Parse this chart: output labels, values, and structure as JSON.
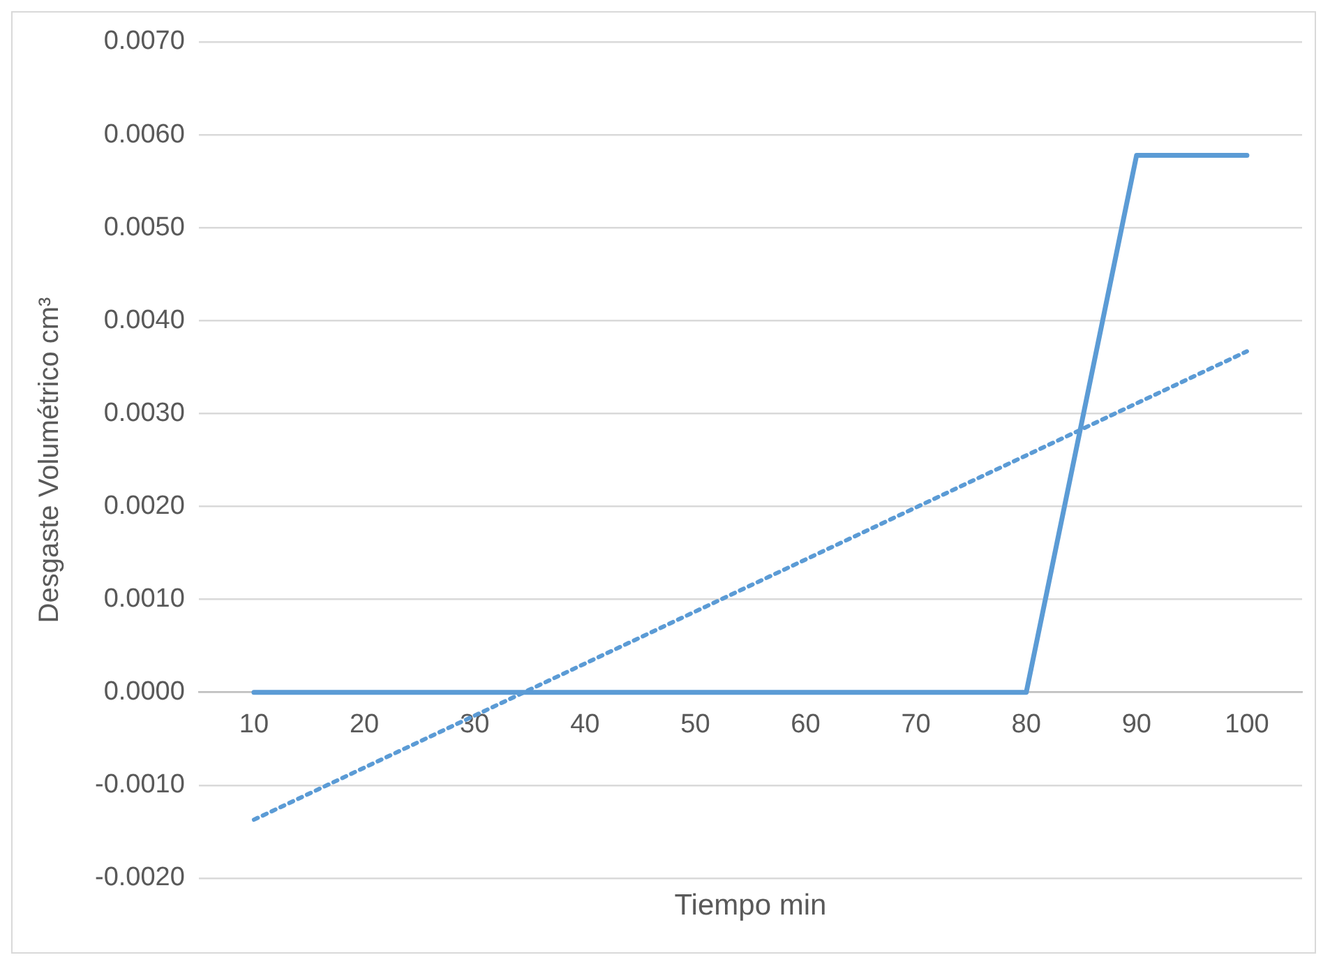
{
  "chart_data": {
    "type": "line",
    "xlabel": "Tiempo min",
    "ylabel": "Desgaste Volumétrico cm³",
    "categories": [
      "10",
      "20",
      "30",
      "40",
      "50",
      "60",
      "70",
      "80",
      "90",
      "100"
    ],
    "series": [
      {
        "color": "#5b9bd5",
        "values": [
          0,
          0,
          0,
          0,
          0,
          0,
          0,
          0,
          0.00578,
          0.00578
        ],
        "line_style": "solid"
      },
      {
        "type": "line",
        "color": "#5b9bd5",
        "x": [
          "10",
          "100"
        ],
        "values": [
          -0.00137,
          0.00367
        ],
        "line_style": "dotted"
      }
    ],
    "ylim": [
      -0.002,
      0.007
    ],
    "yticks": [
      {
        "value": -0.002,
        "label": "-0.0020"
      },
      {
        "value": -0.001,
        "label": "-0.0010"
      },
      {
        "value": 0,
        "label": "0.0000"
      },
      {
        "value": 0.001,
        "label": "0.0010"
      },
      {
        "value": 0.002,
        "label": "0.0020"
      },
      {
        "value": 0.003,
        "label": "0.0030"
      },
      {
        "value": 0.004,
        "label": "0.0040"
      },
      {
        "value": 0.005,
        "label": "0.0050"
      },
      {
        "value": 0.006,
        "label": "0.0060"
      },
      {
        "value": 0.007,
        "label": "0.0070"
      }
    ],
    "grid": "y",
    "legend": false,
    "marker": "none"
  }
}
